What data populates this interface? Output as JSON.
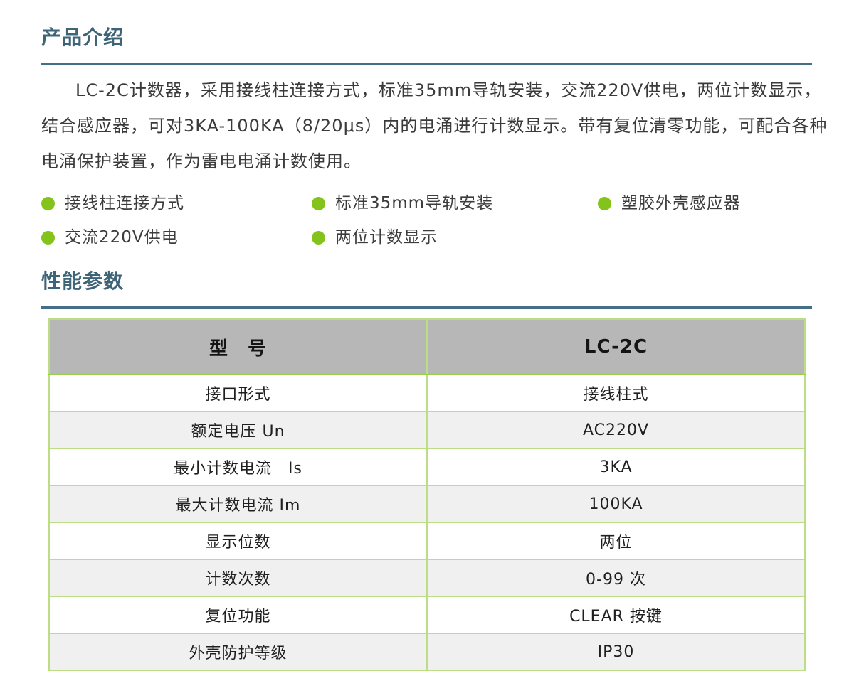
{
  "intro": {
    "title": "产品介绍",
    "lines": [
      "LC-2C计数器，采用接线柱连接方式，标准35mm导轨安装，交流220V供电，两位计数显示，",
      "结合感应器，可对3KA-100KA（8/20μs）内的电涌进行计数显示。带有复位清零功能，可配合各种",
      "电涌保护装置，作为雷电电涌计数使用。"
    ]
  },
  "features": [
    "接线柱连接方式",
    "标准35mm导轨安装",
    "塑胶外壳感应器",
    "交流220V供电",
    "两位计数显示"
  ],
  "performance": {
    "title": "性能参数",
    "table": {
      "header": [
        "型　号",
        "LC-2C"
      ],
      "rows": [
        [
          "接口形式",
          "接线柱式"
        ],
        [
          "额定电压 Un",
          "AC220V"
        ],
        [
          "最小计数电流　Is",
          "3KA"
        ],
        [
          "最大计数电流 Im",
          "100KA"
        ],
        [
          "显示位数",
          "两位"
        ],
        [
          "计数次数",
          "0-99 次"
        ],
        [
          "复位功能",
          "CLEAR 按键"
        ],
        [
          "外壳防护等级",
          "IP30"
        ]
      ]
    }
  },
  "colors": {
    "heading_text": "#3e6478",
    "heading_rule": "#456e88",
    "bullet_green": "#84c31c",
    "table_border_green": "#9bcf4a",
    "table_inner_border": "#bcdd83",
    "table_header_bg": "#b7b7b7",
    "zebra_row_bg": "#f0f0f0"
  }
}
